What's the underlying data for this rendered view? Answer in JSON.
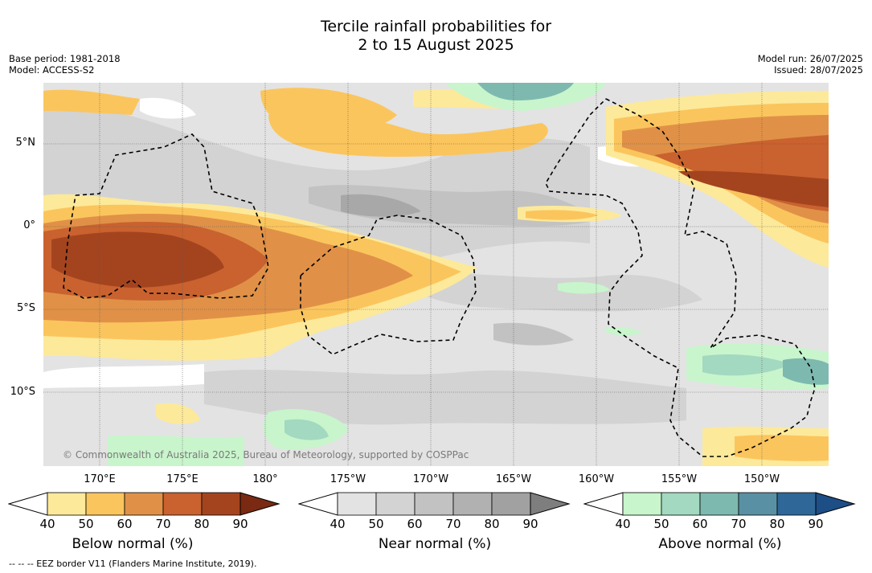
{
  "title_line1": "Tercile rainfall probabilities for",
  "title_line2": "2 to 15 August 2025",
  "base_period": "Base period: 1981-2018",
  "model": "Model: ACCESS-S2",
  "model_run": "Model run: 26/07/2025",
  "issued": "Issued: 28/07/2025",
  "latitudes": [
    "5°N",
    "0°",
    "5°S",
    "10°S"
  ],
  "longitudes": [
    "170°E",
    "175°E",
    "180°",
    "175°W",
    "170°W",
    "165°W",
    "160°W",
    "155°W",
    "150°W"
  ],
  "copyright": "© Commonwealth of Australia 2025, Bureau of Meteorology, supported by COSPPac",
  "eez_note": "--  --  -- EEZ border V11 (Flanders Marine Institute, 2019).",
  "legend": [
    {
      "label": "Below normal (%)",
      "ticks": [
        "40",
        "50",
        "60",
        "70",
        "80",
        "90"
      ],
      "colors": [
        "#ffffff",
        "#fde99a",
        "#fbc55d",
        "#e09147",
        "#c9622f",
        "#a4441f",
        "#7a2a12"
      ]
    },
    {
      "label": "Near normal (%)",
      "ticks": [
        "40",
        "50",
        "60",
        "70",
        "80",
        "90"
      ],
      "colors": [
        "#ffffff",
        "#e3e3e3",
        "#d3d3d3",
        "#c2c2c2",
        "#b1b1b1",
        "#a1a1a1",
        "#7e7e7e"
      ]
    },
    {
      "label": "Above normal (%)",
      "ticks": [
        "40",
        "50",
        "60",
        "70",
        "80",
        "90"
      ],
      "colors": [
        "#ffffff",
        "#c8f5cc",
        "#a2d9c0",
        "#7eb9b0",
        "#5a90a3",
        "#2f6898",
        "#1d4e85"
      ]
    }
  ]
}
